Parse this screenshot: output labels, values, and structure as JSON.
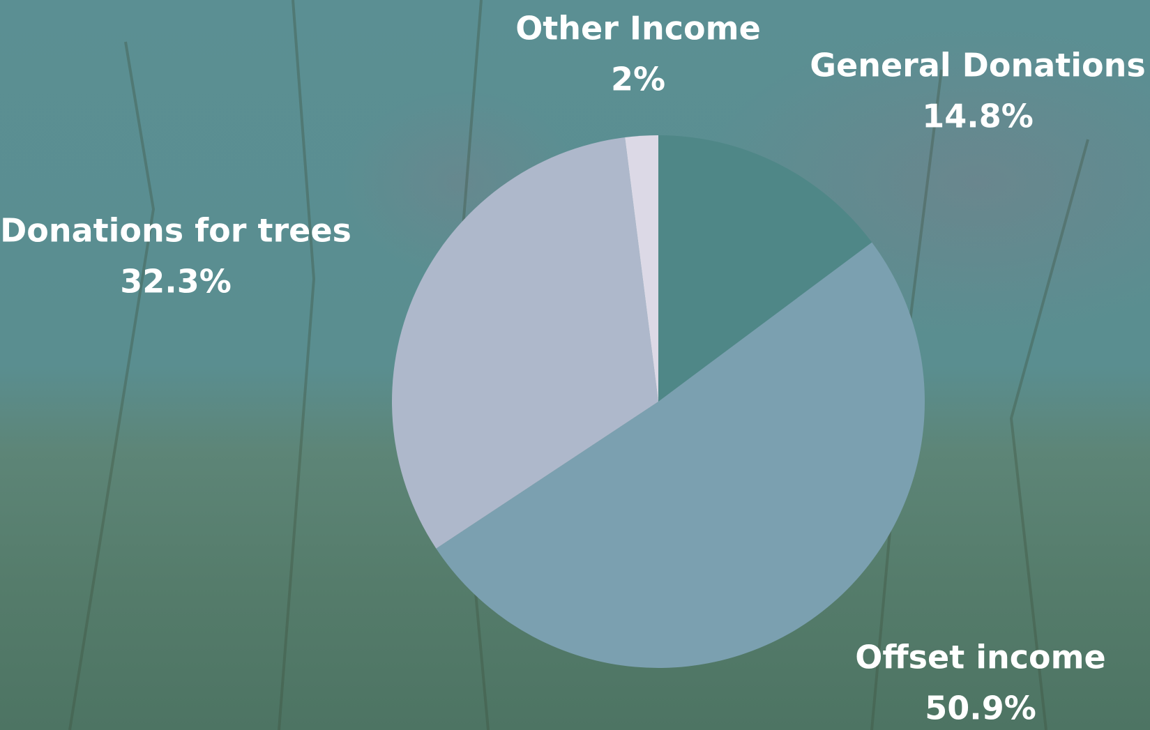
{
  "chart_data": {
    "type": "pie",
    "categories": [
      "General Donations",
      "Offset income",
      "Donations for trees",
      "Other Income"
    ],
    "values": [
      14.8,
      50.9,
      32.3,
      2
    ],
    "value_labels": [
      "14.8%",
      "50.9%",
      "32.3%",
      "2%"
    ],
    "colors": [
      "#4f8787",
      "#7ba0b0",
      "#aeb8cb",
      "#dcd9e6"
    ]
  }
}
